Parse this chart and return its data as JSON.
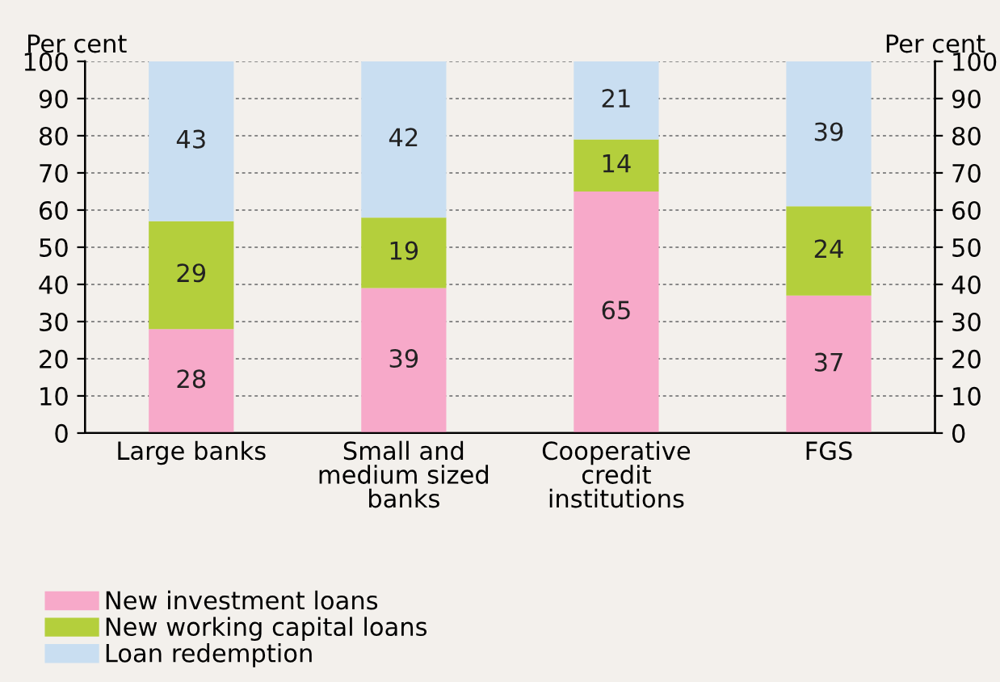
{
  "chart_data": {
    "type": "bar",
    "stacked": true,
    "ylabel": "Per cent",
    "y2label": "Per cent",
    "categories": [
      "Large banks",
      "Small and\nmedium sized\nbanks",
      "Cooperative\ncredit\ninstitutions",
      "FGS"
    ],
    "series": [
      {
        "name": "New investment loans",
        "color": "#f7a9c9",
        "values": [
          28,
          39,
          65,
          37
        ]
      },
      {
        "name": "New working capital loans",
        "color": "#b4cf3c",
        "values": [
          29,
          19,
          14,
          24
        ]
      },
      {
        "name": "Loan redemption",
        "color": "#c9def1",
        "values": [
          43,
          42,
          21,
          39
        ]
      }
    ],
    "ylim": [
      0,
      100
    ],
    "yticks": [
      0,
      10,
      20,
      30,
      40,
      50,
      60,
      70,
      80,
      90,
      100
    ],
    "y2lim": [
      0,
      100
    ],
    "y2ticks": [
      0,
      10,
      20,
      30,
      40,
      50,
      60,
      70,
      80,
      90,
      100
    ],
    "grid": "y",
    "legend": "bottom",
    "data_labels": true
  }
}
